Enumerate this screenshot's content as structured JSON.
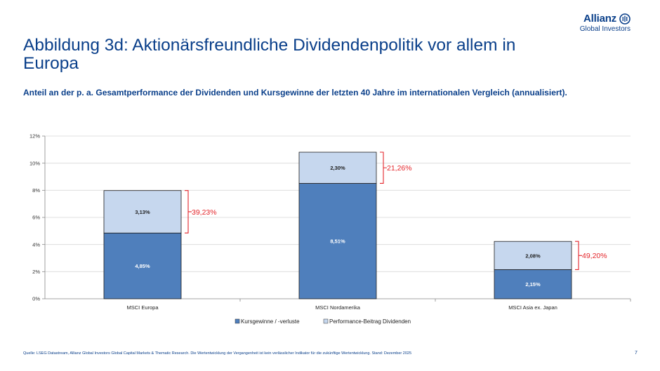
{
  "header": {
    "title": "Abbildung 3d: Aktionärsfreundliche Dividendenpolitik vor allem in Europa",
    "subtitle": "Anteil an der p. a. Gesamtperformance der Dividenden und Kursgewinne der letzten 40 Jahre im internationalen Vergleich (annualisiert).",
    "logo_name": "Allianz",
    "logo_sub": "Global Investors"
  },
  "footer": {
    "source": "Quelle: LSEG Datastream, Allianz Global Investors Global Capital Markets & Thematic Research. Die Wertentwicklung der Vergangenheit ist kein verlässlicher Indikator für die zukünftige Wertentwicklung. Stand: Dezember 2025",
    "page": "7"
  },
  "colors": {
    "kurs": "#4f7fbc",
    "div": "#c6d7ee",
    "accent": "#e4252a",
    "brand": "#0a3f8a"
  },
  "chart_data": {
    "type": "bar",
    "stacked": true,
    "categories": [
      "MSCI Europa",
      "MSCI Nordamerika",
      "MSCI Asia ex. Japan"
    ],
    "series": [
      {
        "name": "Kursgewinne / -verluste",
        "values": [
          4.85,
          8.51,
          2.15
        ],
        "labels": [
          "4,85%",
          "8,51%",
          "2,15%"
        ]
      },
      {
        "name": "Performance-Beitrag Dividenden",
        "values": [
          3.13,
          2.3,
          2.08
        ],
        "labels": [
          "3,13%",
          "2,30%",
          "2,08%"
        ]
      }
    ],
    "dividend_share_labels": [
      "39,23%",
      "21,26%",
      "49,20%"
    ],
    "ylim": [
      0,
      12
    ],
    "yticks": [
      0,
      2,
      4,
      6,
      8,
      10,
      12
    ],
    "ytick_labels": [
      "0%",
      "2%",
      "4%",
      "6%",
      "8%",
      "10%",
      "12%"
    ],
    "legend_position": "bottom-center",
    "grid": true
  }
}
